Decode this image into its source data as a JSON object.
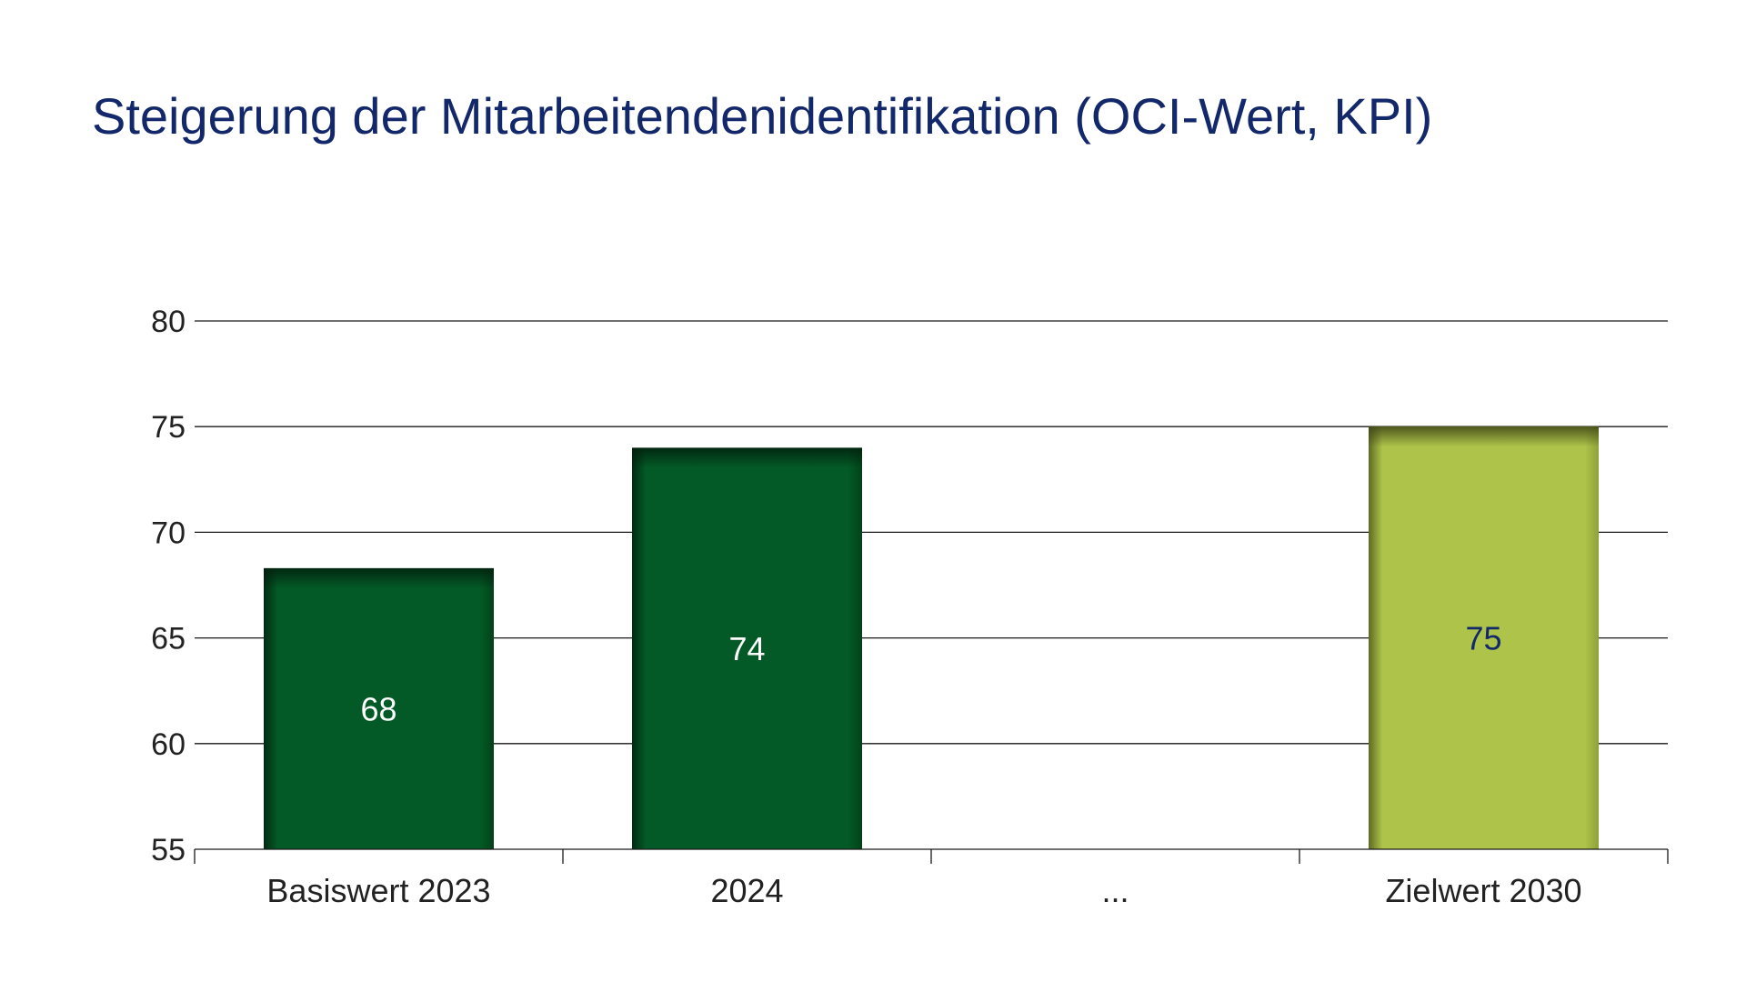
{
  "chart_data": {
    "type": "bar",
    "title": "Steigerung der Mitarbeitendenidentifikation (OCI-Wert, KPI)",
    "xlabel": "",
    "ylabel": "",
    "ylim": [
      55,
      80
    ],
    "yticks": [
      55,
      60,
      65,
      70,
      75,
      80
    ],
    "grid": true,
    "categories": [
      "Basiswert 2023",
      "2024",
      "...",
      "Zielwert 2030"
    ],
    "values": [
      68.3,
      74,
      null,
      75
    ],
    "data_labels": [
      "68",
      "74",
      "",
      "75"
    ],
    "colors": {
      "actual": "#035a26",
      "target": "#aec34a",
      "actual_label": "#ffffff",
      "target_label": "#13286b",
      "title": "#13286b"
    }
  }
}
